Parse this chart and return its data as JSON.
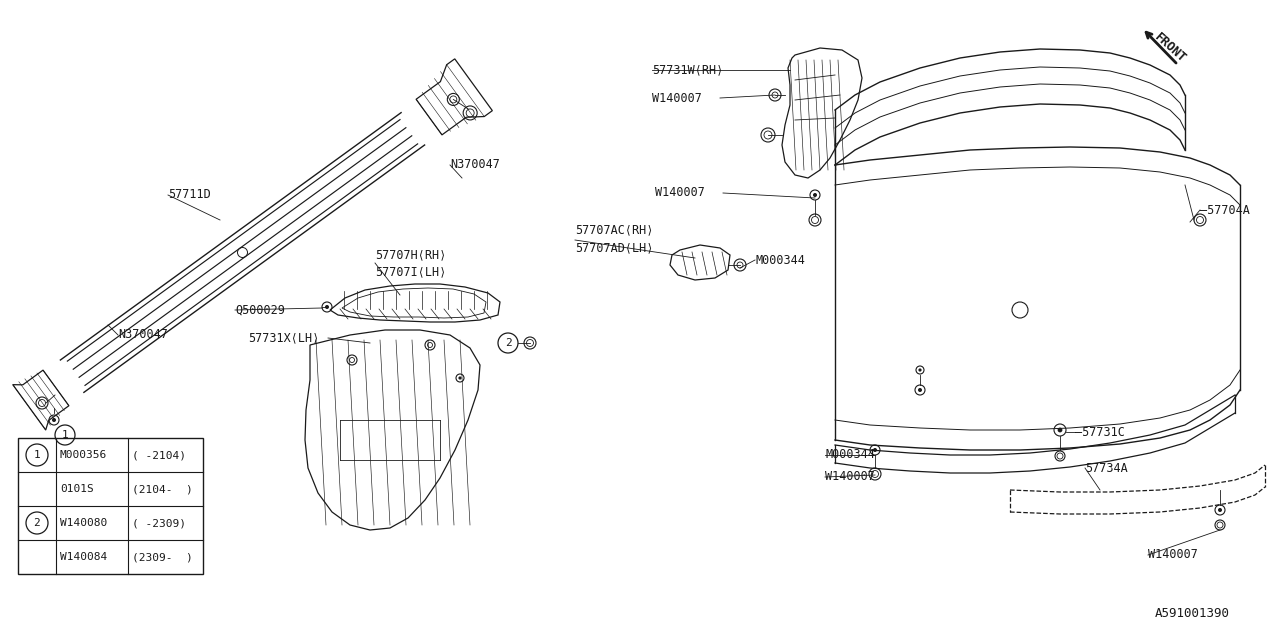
{
  "bg_color": "#ffffff",
  "line_color": "#1a1a1a",
  "diagram_id": "A591001390",
  "table": {
    "rows": [
      {
        "circle": "1",
        "col1": "M000356",
        "col2": "( -2104)"
      },
      {
        "circle": "",
        "col1": "0101S",
        "col2": "(2104-  )"
      },
      {
        "circle": "2",
        "col1": "W140080",
        "col2": "( -2309)"
      },
      {
        "circle": "",
        "col1": "W140084",
        "col2": "(2309-  )"
      }
    ]
  }
}
